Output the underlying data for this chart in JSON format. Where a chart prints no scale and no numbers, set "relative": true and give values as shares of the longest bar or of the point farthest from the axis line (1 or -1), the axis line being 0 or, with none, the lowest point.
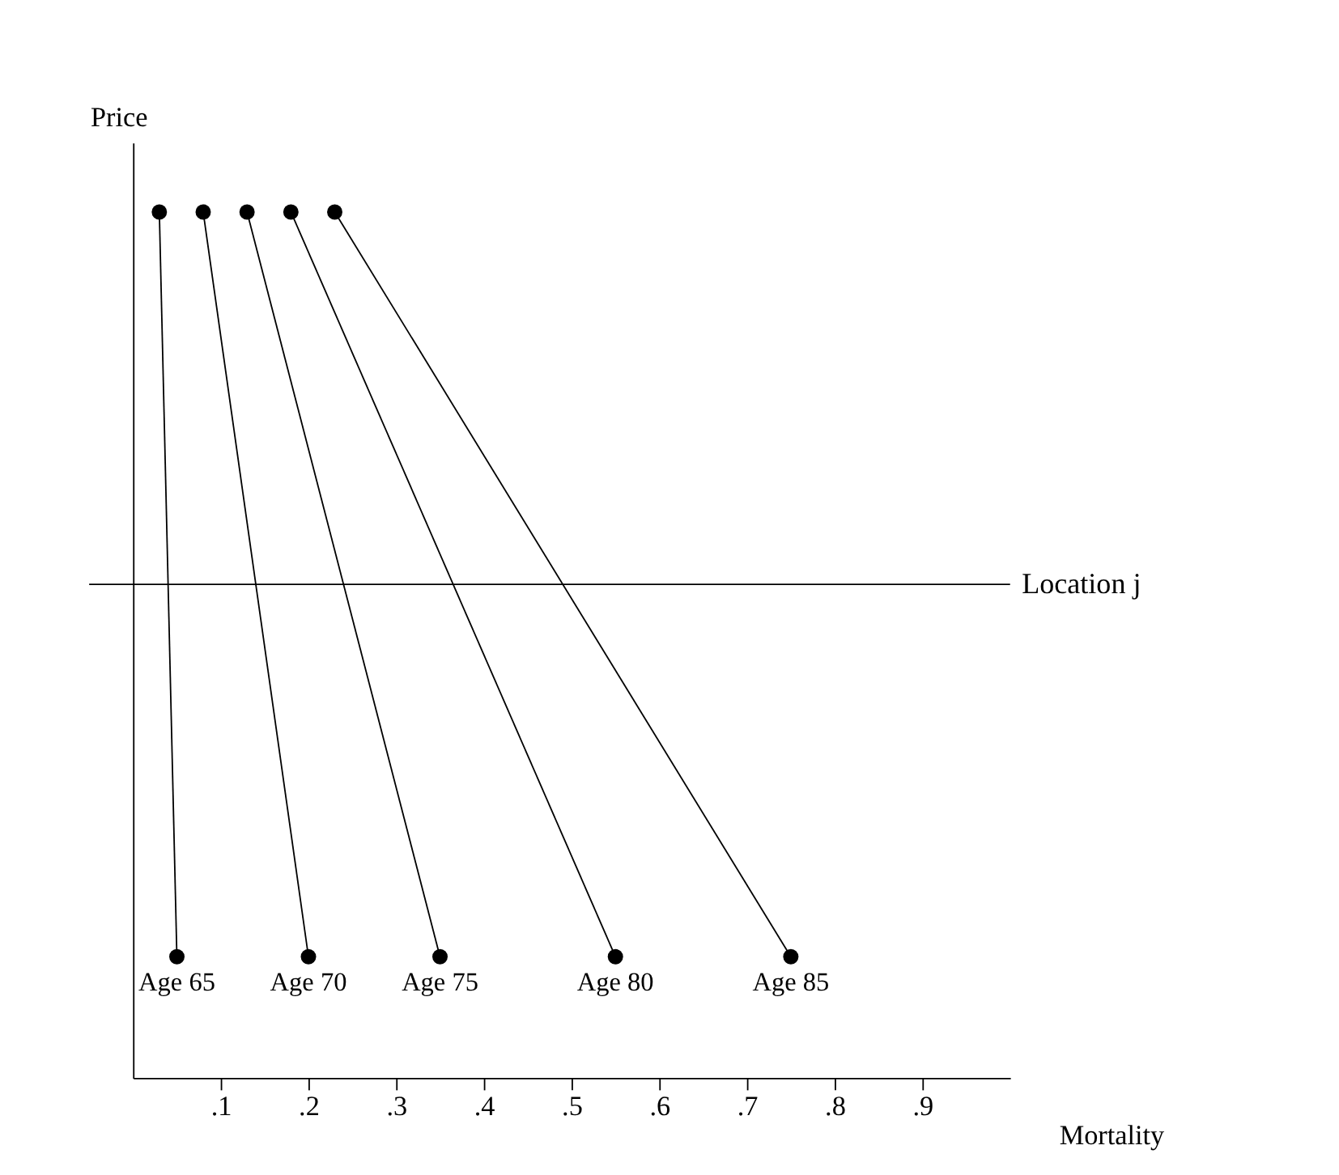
{
  "chart_data": {
    "type": "line",
    "relative": true,
    "xlabel": "Mortality",
    "ylabel": "Price",
    "xlim": [
      0,
      1
    ],
    "xticks": [
      {
        "value": 0.1,
        "label": ".1"
      },
      {
        "value": 0.2,
        "label": ".2"
      },
      {
        "value": 0.3,
        "label": ".3"
      },
      {
        "value": 0.4,
        "label": ".4"
      },
      {
        "value": 0.5,
        "label": ".5"
      },
      {
        "value": 0.6,
        "label": ".6"
      },
      {
        "value": 0.7,
        "label": ".7"
      },
      {
        "value": 0.8,
        "label": ".8"
      },
      {
        "value": 0.9,
        "label": ".9"
      }
    ],
    "series": [
      {
        "color": "#000000",
        "x": [
          0.03,
          0.05
        ],
        "values": [
          1,
          0.14
        ]
      },
      {
        "color": "#000000",
        "x": [
          0.08,
          0.2
        ],
        "values": [
          1,
          0.14
        ]
      },
      {
        "color": "#000000",
        "x": [
          0.13,
          0.35
        ],
        "values": [
          1,
          0.14
        ]
      },
      {
        "color": "#000000",
        "x": [
          0.18,
          0.55
        ],
        "values": [
          1,
          0.14
        ]
      },
      {
        "color": "#000000",
        "x": [
          0.23,
          0.75
        ],
        "values": [
          1,
          0.14
        ]
      }
    ],
    "marker": "circle",
    "grid": false,
    "legend": false,
    "ref_lines": [
      {
        "axis": "y",
        "value": 0.57,
        "label": "Location j",
        "color": "#000000"
      }
    ],
    "annotations": [
      {
        "text": "Age 65",
        "x": 0.05,
        "y": 0.14
      },
      {
        "text": "Age 70",
        "x": 0.2,
        "y": 0.14
      },
      {
        "text": "Age 75",
        "x": 0.35,
        "y": 0.14
      },
      {
        "text": "Age 80",
        "x": 0.55,
        "y": 0.14
      },
      {
        "text": "Age 85",
        "x": 0.75,
        "y": 0.14
      }
    ]
  }
}
